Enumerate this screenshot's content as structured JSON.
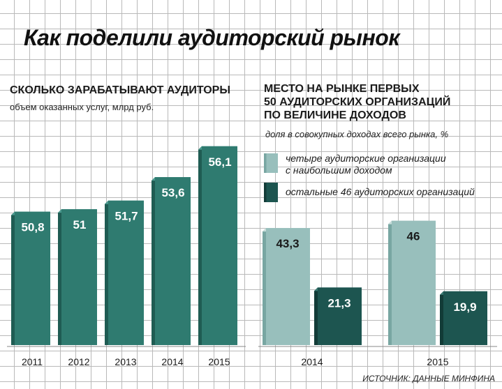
{
  "title": "Как поделили аудиторский рынок",
  "left_chart": {
    "title": "СКОЛЬКО ЗАРАБАТЫВАЮТ АУДИТОРЫ",
    "subtitle": "объем оказанных услуг, млрд руб."
  },
  "right_chart": {
    "title_lines": [
      "МЕСТО НА РЫНКЕ ПЕРВЫХ",
      "50 АУДИТОРСКИХ ОРГАНИЗАЦИЙ",
      "ПО ВЕЛИЧИНЕ ДОХОДОВ"
    ],
    "subtitle": "доля в совокупных доходах всего рынка, %",
    "legend": [
      {
        "label_lines": [
          "четыре аудиторские организации",
          "с наибольшим доходом"
        ],
        "color": "#98bfbc"
      },
      {
        "label_lines": [
          "остальные 46 аудиторских организаций"
        ],
        "color": "#1d5550"
      }
    ]
  },
  "source": "ИСТОЧНИК: ДАННЫЕ МИНФИНА",
  "colors": {
    "bar_main": "#2f7b70",
    "bar_main_top": "#4a9a8f",
    "bar_main_side": "#1f5c53",
    "bar_light": "#98bfbc",
    "bar_light_top": "#c8dedb",
    "bar_light_side": "#78a6a2",
    "bar_dark": "#1d5550",
    "bar_dark_top": "#3a7a73",
    "bar_dark_side": "#123b37"
  },
  "chart_data": [
    {
      "type": "bar",
      "title": "СКОЛЬКО ЗАРАБАТЫВАЮТ АУДИТОРЫ",
      "subtitle": "объем оказанных услуг, млрд руб.",
      "categories": [
        "2011",
        "2012",
        "2013",
        "2014",
        "2015"
      ],
      "values": [
        50.8,
        51,
        51.7,
        53.6,
        56.1
      ],
      "value_labels": [
        "50,8",
        "51",
        "51,7",
        "53,6",
        "56,1"
      ],
      "ylim": [
        40.0,
        57.5
      ],
      "grid": true
    },
    {
      "type": "bar",
      "title": "МЕСТО НА РЫНКЕ ПЕРВЫХ 50 АУДИТОРСКИХ ОРГАНИЗАЦИЙ ПО ВЕЛИЧИНЕ ДОХОДОВ",
      "subtitle": "доля в совокупных доходах всего рынка, %",
      "categories": [
        "2014",
        "2015"
      ],
      "series": [
        {
          "name": "четыре аудиторские организации с наибольшим доходом",
          "values": [
            43.3,
            46
          ],
          "labels": [
            "43,3",
            "46"
          ]
        },
        {
          "name": "остальные 46 аудиторских организаций",
          "values": [
            21.3,
            19.9
          ],
          "labels": [
            "21,3",
            "19,9"
          ]
        }
      ],
      "ylim": [
        0,
        49
      ],
      "grid": true
    }
  ]
}
